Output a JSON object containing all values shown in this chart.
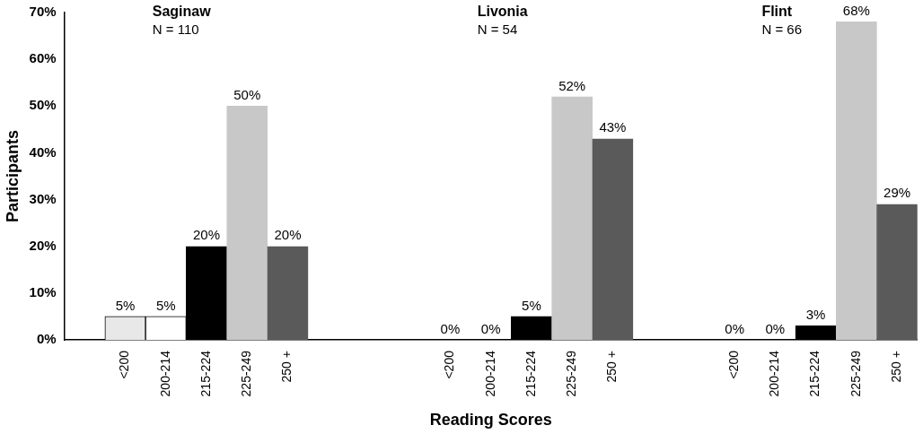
{
  "chart_data": {
    "type": "bar",
    "categories": [
      null,
      "<200",
      "200-214",
      "215-224",
      "225-249",
      "250 +",
      null,
      null,
      null,
      "<200",
      "200-214",
      "215-224",
      "225-249",
      "250 +",
      null,
      null,
      "<200",
      "200-214",
      "215-224",
      "225-249",
      "250 +"
    ],
    "values": [
      null,
      5,
      5,
      20,
      50,
      20,
      null,
      null,
      null,
      0,
      0,
      5,
      52,
      43,
      null,
      null,
      0,
      0,
      3,
      68,
      29
    ],
    "value_labels": [
      null,
      "5%",
      "5%",
      "20%",
      "50%",
      "20%",
      null,
      null,
      null,
      "0%",
      "0%",
      "5%",
      "52%",
      "43%",
      null,
      null,
      "0%",
      "0%",
      "3%",
      "68%",
      "29%"
    ],
    "colors": [
      null,
      "#e8e8e8",
      "#ffffff",
      "#000000",
      "#c8c8c8",
      "#5a5a5a",
      null,
      null,
      null,
      "#e8e8e8",
      "#ffffff",
      "#000000",
      "#c8c8c8",
      "#5a5a5a",
      null,
      null,
      "#e8e8e8",
      "#ffffff",
      "#000000",
      "#c8c8c8",
      "#5a5a5a"
    ],
    "ylim": [
      0,
      70
    ],
    "yticks": [
      {
        "value": 0,
        "label": "0%"
      },
      {
        "value": 10,
        "label": "10%"
      },
      {
        "value": 20,
        "label": "20%"
      },
      {
        "value": 30,
        "label": "30%"
      },
      {
        "value": 40,
        "label": "40%"
      },
      {
        "value": 50,
        "label": "50%"
      },
      {
        "value": 60,
        "label": "60%"
      },
      {
        "value": 70,
        "label": "70%"
      }
    ],
    "ylabel": "Participants",
    "xlabel": "Reading Scores",
    "annotations": [
      "Saginaw\nN = 110",
      "Livonia\nN = 54",
      "Flint\nN = 66"
    ],
    "grid": false,
    "legend": false
  }
}
